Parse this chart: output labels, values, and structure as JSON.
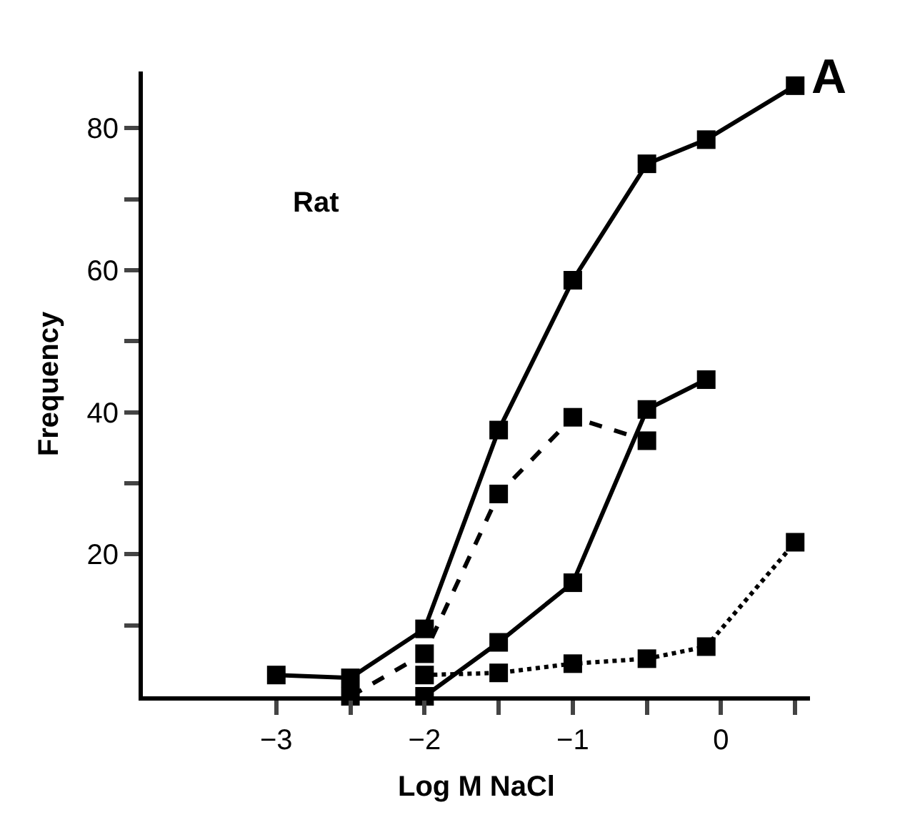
{
  "chart_data": {
    "type": "line",
    "xlabel": "Log M NaCl",
    "ylabel": "Frequency",
    "annotations": [
      "Rat",
      "A"
    ],
    "marker": "square",
    "xlim": [
      -3.9,
      0.6
    ],
    "ylim": [
      0,
      88
    ],
    "xticks": [
      -3,
      {
        "value": -2.5,
        "label": null
      },
      -2,
      {
        "value": -1.5,
        "label": null
      },
      -1,
      {
        "value": -0.5,
        "label": null
      },
      0,
      {
        "value": 0.5,
        "label": null
      }
    ],
    "yticks": [
      {
        "value": 10,
        "label": null
      },
      20,
      {
        "value": 30,
        "label": null
      },
      40,
      {
        "value": 50,
        "label": null
      },
      60,
      {
        "value": 70,
        "label": null
      },
      80
    ],
    "series": [
      {
        "color": "#000000",
        "line_style": "solid",
        "x": [
          -3,
          -2.5,
          -2,
          -1.5,
          -1,
          -0.5,
          -0.1,
          0.5
        ],
        "values": [
          3,
          2.6,
          9.5,
          37.5,
          58.6,
          75,
          78.4,
          86
        ]
      },
      {
        "color": "#000000",
        "line_style": "dashed",
        "x": [
          -2.5,
          -2,
          -1.5,
          -1,
          -0.5
        ],
        "values": [
          0,
          6,
          28.5,
          39.3,
          36
        ]
      },
      {
        "color": "#000000",
        "line_style": "solid",
        "x": [
          -2,
          -1.5,
          -1,
          -0.5,
          -0.1
        ],
        "values": [
          0,
          7.6,
          16,
          40.4,
          44.6
        ]
      },
      {
        "color": "#000000",
        "line_style": "dotted",
        "x": [
          -2,
          -1.5,
          -1,
          -0.5,
          -0.1,
          0.5
        ],
        "values": [
          3,
          3.3,
          4.6,
          5.3,
          7,
          21.7
        ]
      }
    ]
  }
}
